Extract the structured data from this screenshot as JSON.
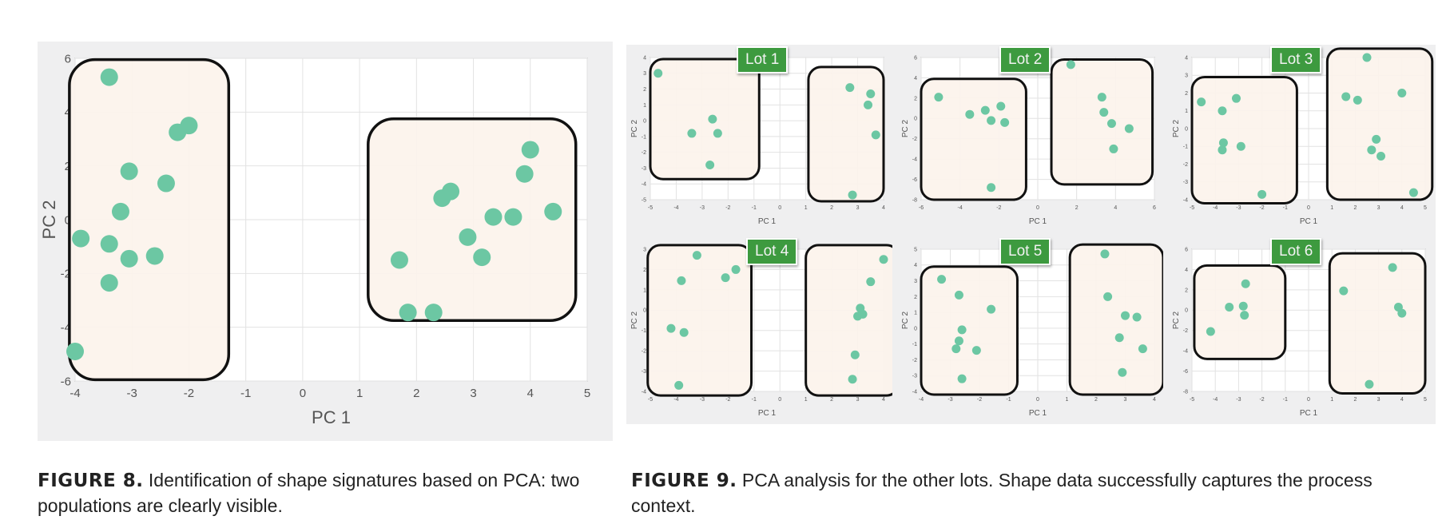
{
  "colors": {
    "point": "#6cc7a3",
    "region_fill": "#fcf3ec",
    "region_stroke": "#111111",
    "label_bg": "#3d9a3f",
    "panel_bg": "#efeff0"
  },
  "captions": {
    "figure8": {
      "label": "FIGURE 8.",
      "text": " Identification of shape signatures based on PCA: two populations are clearly visible."
    },
    "figure9": {
      "label": "FIGURE 9.",
      "text": " PCA analysis for the other lots. Shape data successfully captures the process context."
    }
  },
  "chart_data": [
    {
      "type": "scatter",
      "title": "",
      "xlabel": "PC 1",
      "ylabel": "PC 2",
      "xlim": [
        -4,
        5
      ],
      "ylim": [
        -6,
        6
      ],
      "xticks": [
        -4,
        -3,
        -2,
        -1,
        0,
        1,
        2,
        3,
        4,
        5
      ],
      "yticks": [
        -6,
        -4,
        -2,
        0,
        2,
        4,
        6
      ],
      "grid": true,
      "points": [
        [
          -3.4,
          5.3
        ],
        [
          -2.0,
          3.5
        ],
        [
          -2.2,
          3.25
        ],
        [
          -3.05,
          1.8
        ],
        [
          -2.4,
          1.35
        ],
        [
          -3.2,
          0.3
        ],
        [
          -3.9,
          -0.7
        ],
        [
          -3.4,
          -0.9
        ],
        [
          -3.05,
          -1.45
        ],
        [
          -2.6,
          -1.35
        ],
        [
          -3.4,
          -2.35
        ],
        [
          -4.0,
          -4.9
        ],
        [
          4.0,
          2.6
        ],
        [
          3.9,
          1.7
        ],
        [
          2.6,
          1.05
        ],
        [
          2.45,
          0.8
        ],
        [
          3.35,
          0.1
        ],
        [
          3.7,
          0.1
        ],
        [
          4.4,
          0.3
        ],
        [
          2.9,
          -0.65
        ],
        [
          3.15,
          -1.4
        ],
        [
          1.7,
          -1.5
        ],
        [
          1.85,
          -3.45
        ],
        [
          2.3,
          -3.45
        ]
      ],
      "highlight_regions": [
        [
          -4.1,
          -1.3,
          -5.95,
          5.95
        ],
        [
          1.15,
          4.8,
          -3.75,
          3.75
        ]
      ]
    },
    {
      "type": "scatter",
      "title": "Lot 1",
      "xlabel": "PC 1",
      "ylabel": "PC 2",
      "xlim": [
        -5,
        4
      ],
      "ylim": [
        -5,
        4
      ],
      "xticks": [
        -5,
        -4,
        -3,
        -2,
        -1,
        0,
        1,
        2,
        3,
        4
      ],
      "yticks": [
        -5,
        -4,
        -3,
        -2,
        -1,
        0,
        1,
        2,
        3,
        4
      ],
      "grid": true,
      "points": [
        [
          -4.7,
          3.0
        ],
        [
          -2.6,
          0.1
        ],
        [
          -3.4,
          -0.8
        ],
        [
          -2.4,
          -0.8
        ],
        [
          -2.7,
          -2.8
        ],
        [
          2.7,
          2.1
        ],
        [
          3.5,
          1.7
        ],
        [
          3.4,
          1.0
        ],
        [
          3.7,
          -0.9
        ],
        [
          2.8,
          -4.7
        ]
      ],
      "highlight_regions": [
        [
          -5.0,
          -0.8,
          -3.7,
          3.9
        ],
        [
          1.1,
          4.0,
          -5.1,
          3.4
        ]
      ]
    },
    {
      "type": "scatter",
      "title": "Lot 2",
      "xlabel": "PC 1",
      "ylabel": "PC 2",
      "xlim": [
        -6,
        6
      ],
      "ylim": [
        -8,
        6
      ],
      "xticks": [
        -6,
        -4,
        -2,
        0,
        2,
        4,
        6
      ],
      "yticks": [
        -8,
        -6,
        -4,
        -2,
        0,
        2,
        4,
        6
      ],
      "grid": true,
      "points": [
        [
          -5.1,
          2.1
        ],
        [
          -3.5,
          0.4
        ],
        [
          -2.7,
          0.8
        ],
        [
          -2.4,
          -0.2
        ],
        [
          -1.9,
          1.2
        ],
        [
          -1.7,
          -0.4
        ],
        [
          -2.4,
          -6.8
        ],
        [
          1.7,
          5.3
        ],
        [
          3.3,
          2.1
        ],
        [
          3.4,
          0.6
        ],
        [
          3.8,
          -0.5
        ],
        [
          4.7,
          -1.0
        ],
        [
          3.9,
          -3.0
        ]
      ],
      "highlight_regions": [
        [
          -6.0,
          -0.6,
          -8.0,
          3.9
        ],
        [
          0.7,
          5.9,
          -6.5,
          5.8
        ]
      ]
    },
    {
      "type": "scatter",
      "title": "Lot 3",
      "xlabel": "PC 1",
      "ylabel": "PC 2",
      "xlim": [
        -5,
        5
      ],
      "ylim": [
        -4,
        4
      ],
      "xticks": [
        -5,
        -4,
        -3,
        -2,
        -1,
        0,
        1,
        2,
        3,
        4,
        5
      ],
      "yticks": [
        -4,
        -3,
        -2,
        -1,
        0,
        1,
        2,
        3,
        4
      ],
      "grid": true,
      "points": [
        [
          -4.6,
          1.5
        ],
        [
          -3.7,
          1.0
        ],
        [
          -3.1,
          1.7
        ],
        [
          -3.65,
          -0.8
        ],
        [
          -3.7,
          -1.2
        ],
        [
          -2.9,
          -1.0
        ],
        [
          -2.0,
          -3.7
        ],
        [
          2.5,
          4.0
        ],
        [
          1.6,
          1.8
        ],
        [
          2.1,
          1.6
        ],
        [
          4.0,
          2.0
        ],
        [
          2.9,
          -0.6
        ],
        [
          2.7,
          -1.2
        ],
        [
          3.1,
          -1.55
        ],
        [
          4.5,
          -3.6
        ]
      ],
      "highlight_regions": [
        [
          -5.0,
          -0.5,
          -4.2,
          2.9
        ],
        [
          0.8,
          5.3,
          -4.0,
          4.5
        ]
      ]
    },
    {
      "type": "scatter",
      "title": "Lot 4",
      "xlabel": "PC 1",
      "ylabel": "PC 2",
      "xlim": [
        -5,
        4
      ],
      "ylim": [
        -4,
        3
      ],
      "xticks": [
        -5,
        -4,
        -3,
        -2,
        -1,
        0,
        1,
        2,
        3,
        4
      ],
      "yticks": [
        -4,
        -3,
        -2,
        -1,
        0,
        1,
        2,
        3
      ],
      "grid": true,
      "points": [
        [
          -3.2,
          2.7
        ],
        [
          -3.8,
          1.45
        ],
        [
          -2.1,
          1.6
        ],
        [
          -1.7,
          2.0
        ],
        [
          -4.2,
          -0.9
        ],
        [
          -3.7,
          -1.1
        ],
        [
          -3.9,
          -3.7
        ],
        [
          4.0,
          2.5
        ],
        [
          3.5,
          1.4
        ],
        [
          3.1,
          0.1
        ],
        [
          3.0,
          -0.3
        ],
        [
          3.2,
          -0.2
        ],
        [
          2.9,
          -2.2
        ],
        [
          2.8,
          -3.4
        ]
      ],
      "highlight_regions": [
        [
          -5.1,
          -1.1,
          -4.2,
          3.2
        ],
        [
          1.0,
          4.6,
          -4.2,
          3.2
        ]
      ]
    },
    {
      "type": "scatter",
      "title": "Lot 5",
      "xlabel": "PC 1",
      "ylabel": "PC 2",
      "xlim": [
        -4,
        4
      ],
      "ylim": [
        -4,
        5
      ],
      "xticks": [
        -4,
        -3,
        -2,
        -1,
        0,
        1,
        2,
        3,
        4
      ],
      "yticks": [
        -4,
        -3,
        -2,
        -1,
        0,
        1,
        2,
        3,
        4,
        5
      ],
      "grid": true,
      "points": [
        [
          -3.3,
          3.1
        ],
        [
          -2.7,
          2.1
        ],
        [
          -1.6,
          1.2
        ],
        [
          -2.6,
          -0.1
        ],
        [
          -2.7,
          -0.8
        ],
        [
          -2.8,
          -1.3
        ],
        [
          -2.1,
          -1.4
        ],
        [
          -2.6,
          -3.2
        ],
        [
          2.3,
          4.7
        ],
        [
          2.4,
          2.0
        ],
        [
          3.0,
          0.8
        ],
        [
          3.4,
          0.7
        ],
        [
          2.8,
          -0.6
        ],
        [
          3.6,
          -1.3
        ],
        [
          2.9,
          -2.8
        ]
      ],
      "highlight_regions": [
        [
          -4.0,
          -0.7,
          -4.2,
          3.9
        ],
        [
          1.1,
          4.3,
          -4.2,
          5.3
        ]
      ]
    },
    {
      "type": "scatter",
      "title": "Lot 6",
      "xlabel": "PC 1",
      "ylabel": "PC 2",
      "xlim": [
        -5,
        5
      ],
      "ylim": [
        -8,
        6
      ],
      "xticks": [
        -5,
        -4,
        -3,
        -2,
        -1,
        0,
        1,
        2,
        3,
        4,
        5
      ],
      "yticks": [
        -8,
        -6,
        -4,
        -2,
        0,
        2,
        4,
        6
      ],
      "grid": true,
      "points": [
        [
          -2.7,
          2.6
        ],
        [
          -3.4,
          0.3
        ],
        [
          -2.8,
          0.4
        ],
        [
          -2.75,
          -0.5
        ],
        [
          -4.2,
          -2.1
        ],
        [
          3.6,
          4.2
        ],
        [
          1.5,
          1.9
        ],
        [
          3.85,
          0.3
        ],
        [
          4.0,
          -0.3
        ],
        [
          2.6,
          -7.3
        ]
      ],
      "highlight_regions": [
        [
          -4.9,
          -1.0,
          -4.8,
          4.4
        ],
        [
          0.9,
          5.0,
          -8.2,
          5.6
        ]
      ]
    }
  ]
}
